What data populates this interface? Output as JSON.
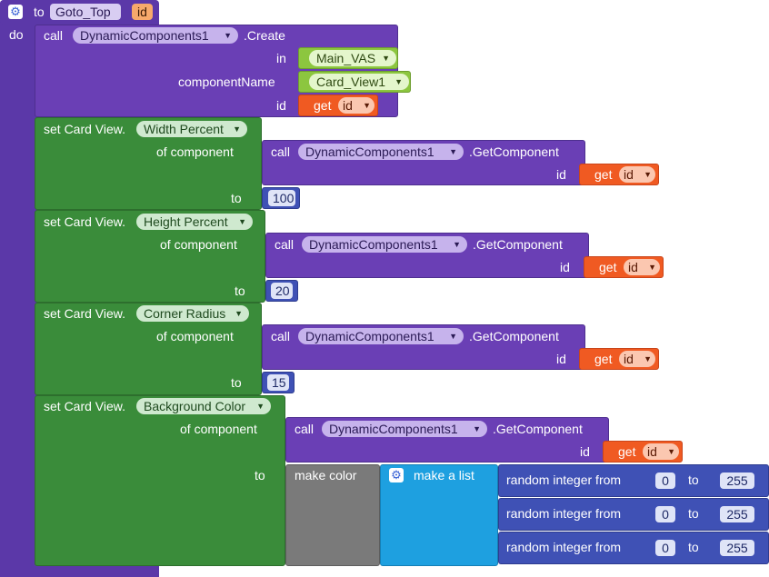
{
  "procedure": {
    "to_label": "to",
    "name": "Goto_Top",
    "param": "id",
    "do_label": "do"
  },
  "create": {
    "call_label": "call",
    "component": "DynamicComponents1",
    "method": ".Create",
    "in_label": "in",
    "in_value": "Main_VAS",
    "componentName_label": "componentName",
    "componentName_value": "Card_View1",
    "id_label": "id",
    "get_label": "get",
    "get_var": "id"
  },
  "setters": [
    {
      "set_label": "set Card View.",
      "property": "Width Percent",
      "of_label": "of component",
      "to_label": "to",
      "value": "100"
    },
    {
      "set_label": "set Card View.",
      "property": "Height Percent",
      "of_label": "of component",
      "to_label": "to",
      "value": "20"
    },
    {
      "set_label": "set Card View.",
      "property": "Corner Radius",
      "of_label": "of component",
      "to_label": "to",
      "value": "15"
    },
    {
      "set_label": "set Card View.",
      "property": "Background Color",
      "of_label": "of component",
      "to_label": "to"
    }
  ],
  "getComponent": {
    "call_label": "call",
    "component": "DynamicComponents1",
    "method": ".GetComponent",
    "id_label": "id",
    "get_label": "get",
    "get_var": "id"
  },
  "color": {
    "make_color": "make color",
    "make_list": "make a list",
    "random_label": "random integer from",
    "to_label": "to",
    "rows": [
      {
        "from": "0",
        "to": "255"
      },
      {
        "from": "0",
        "to": "255"
      },
      {
        "from": "0",
        "to": "255"
      }
    ]
  },
  "colors": {
    "procedure": "#5b38a8",
    "call": "#6a3fb5",
    "setter": "#3a8c3a",
    "get": "#f05a22",
    "number": "#3f51b5",
    "text": "#8cc63f",
    "make_color": "#7a7a7a",
    "make_list": "#1ea0e0"
  },
  "icons": {
    "procedure_gear": "gear-icon",
    "list_gear": "gear-icon",
    "dropdown": "chevron-down-icon"
  }
}
